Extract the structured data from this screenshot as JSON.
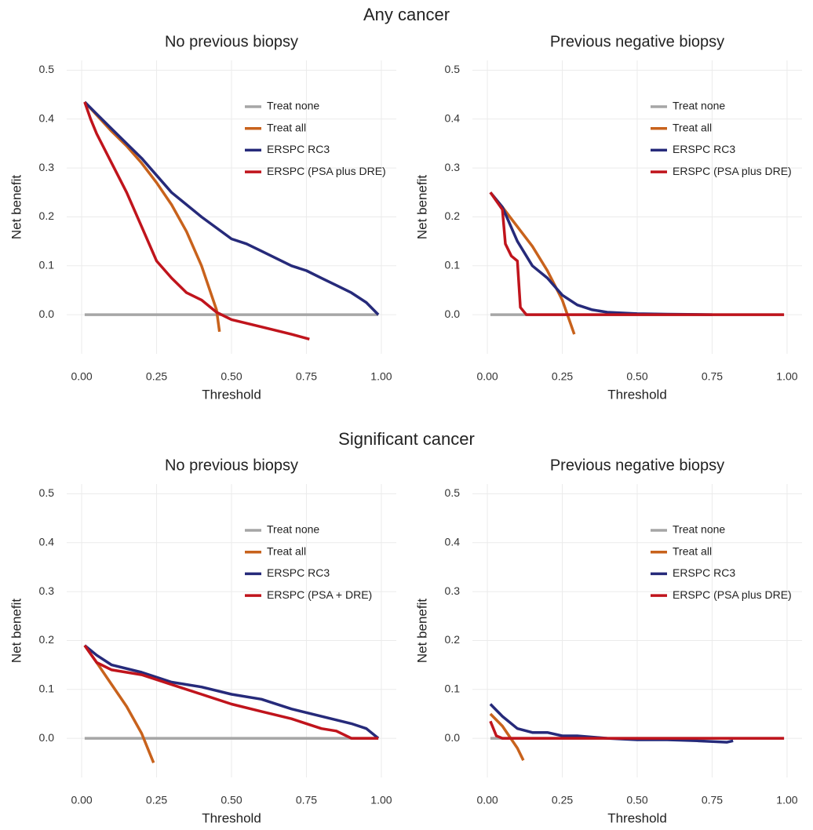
{
  "figure": {
    "section_titles": [
      "Any cancer",
      "Significant cancer"
    ]
  },
  "chart_data": [
    {
      "type": "line",
      "title": "No previous biopsy",
      "x_label": "Threshold",
      "y_label": "Net benefit",
      "xlim": [
        -0.05,
        1.05
      ],
      "ylim": [
        -0.08,
        0.52
      ],
      "xticks": [
        {
          "value": 0,
          "label": "0.00"
        },
        0.25,
        {
          "value": 0.5,
          "label": "0.50"
        },
        0.75,
        {
          "value": 1,
          "label": "1.00"
        }
      ],
      "yticks": [
        {
          "value": 0,
          "label": "0.0"
        },
        0.1,
        0.2,
        0.3,
        0.4,
        0.5
      ],
      "grid": true,
      "legend": "upper right",
      "series": [
        {
          "name": "Treat none",
          "color": "#a6a6a6",
          "x": [
            0.01,
            0.99
          ],
          "values": [
            0,
            0
          ]
        },
        {
          "name": "Treat all",
          "color": "#c8621c",
          "x": [
            0.01,
            0.1,
            0.15,
            0.2,
            0.25,
            0.3,
            0.35,
            0.4,
            0.45,
            0.46
          ],
          "values": [
            0.435,
            0.375,
            0.345,
            0.31,
            0.27,
            0.225,
            0.17,
            0.1,
            0.01,
            -0.035
          ]
        },
        {
          "name": "ERSPC RC3",
          "color": "#262a7a",
          "x": [
            0.01,
            0.1,
            0.2,
            0.3,
            0.4,
            0.5,
            0.55,
            0.6,
            0.65,
            0.7,
            0.75,
            0.8,
            0.85,
            0.9,
            0.95,
            0.99
          ],
          "values": [
            0.435,
            0.38,
            0.32,
            0.25,
            0.2,
            0.155,
            0.145,
            0.13,
            0.115,
            0.1,
            0.09,
            0.075,
            0.06,
            0.045,
            0.025,
            0
          ]
        },
        {
          "name": "ERSPC (PSA plus DRE)",
          "color": "#c0141c",
          "x": [
            0.01,
            0.03,
            0.05,
            0.1,
            0.15,
            0.2,
            0.25,
            0.3,
            0.35,
            0.4,
            0.45,
            0.5,
            0.6,
            0.7,
            0.76
          ],
          "values": [
            0.435,
            0.4,
            0.37,
            0.31,
            0.25,
            0.18,
            0.11,
            0.075,
            0.045,
            0.03,
            0.005,
            -0.01,
            -0.025,
            -0.04,
            -0.05
          ]
        }
      ]
    },
    {
      "type": "line",
      "title": "Previous negative biopsy",
      "x_label": "Threshold",
      "y_label": "Net benefit",
      "xlim": [
        -0.05,
        1.05
      ],
      "ylim": [
        -0.08,
        0.52
      ],
      "xticks": [
        {
          "value": 0,
          "label": "0.00"
        },
        0.25,
        {
          "value": 0.5,
          "label": "0.50"
        },
        0.75,
        {
          "value": 1,
          "label": "1.00"
        }
      ],
      "yticks": [
        {
          "value": 0,
          "label": "0.0"
        },
        0.1,
        0.2,
        0.3,
        0.4,
        0.5
      ],
      "grid": true,
      "legend": "upper right",
      "series": [
        {
          "name": "Treat none",
          "color": "#a6a6a6",
          "x": [
            0.01,
            0.99
          ],
          "values": [
            0,
            0
          ]
        },
        {
          "name": "Treat all",
          "color": "#c8621c",
          "x": [
            0.01,
            0.05,
            0.1,
            0.15,
            0.2,
            0.25,
            0.29
          ],
          "values": [
            0.25,
            0.22,
            0.18,
            0.14,
            0.09,
            0.03,
            -0.04
          ]
        },
        {
          "name": "ERSPC RC3",
          "color": "#262a7a",
          "x": [
            0.01,
            0.05,
            0.1,
            0.15,
            0.2,
            0.25,
            0.3,
            0.35,
            0.4,
            0.5,
            0.6,
            0.75
          ],
          "values": [
            0.25,
            0.22,
            0.15,
            0.1,
            0.075,
            0.04,
            0.02,
            0.01,
            0.005,
            0.002,
            0.001,
            0
          ]
        },
        {
          "name": "ERSPC (PSA plus DRE)",
          "color": "#c0141c",
          "x": [
            0.01,
            0.05,
            0.06,
            0.08,
            0.1,
            0.11,
            0.13,
            0.99
          ],
          "values": [
            0.25,
            0.215,
            0.145,
            0.12,
            0.11,
            0.015,
            0,
            0
          ]
        }
      ]
    },
    {
      "type": "line",
      "title": "No previous biopsy",
      "x_label": "Threshold",
      "y_label": "Net benefit",
      "xlim": [
        -0.05,
        1.05
      ],
      "ylim": [
        -0.08,
        0.52
      ],
      "xticks": [
        {
          "value": 0,
          "label": "0.00"
        },
        0.25,
        {
          "value": 0.5,
          "label": "0.50"
        },
        0.75,
        {
          "value": 1,
          "label": "1.00"
        }
      ],
      "yticks": [
        {
          "value": 0,
          "label": "0.0"
        },
        0.1,
        0.2,
        0.3,
        0.4,
        0.5
      ],
      "grid": true,
      "legend": "upper right",
      "series": [
        {
          "name": "Treat none",
          "color": "#a6a6a6",
          "x": [
            0.01,
            0.99
          ],
          "values": [
            0,
            0
          ]
        },
        {
          "name": "Treat all",
          "color": "#c8621c",
          "x": [
            0.01,
            0.05,
            0.1,
            0.15,
            0.2,
            0.24
          ],
          "values": [
            0.19,
            0.155,
            0.11,
            0.065,
            0.01,
            -0.05
          ]
        },
        {
          "name": "ERSPC RC3",
          "color": "#262a7a",
          "x": [
            0.01,
            0.05,
            0.1,
            0.2,
            0.3,
            0.4,
            0.5,
            0.6,
            0.7,
            0.8,
            0.9,
            0.95,
            0.99
          ],
          "values": [
            0.19,
            0.17,
            0.15,
            0.135,
            0.115,
            0.105,
            0.09,
            0.08,
            0.06,
            0.045,
            0.03,
            0.02,
            0
          ]
        },
        {
          "name": "ERSPC (PSA + DRE)",
          "color": "#c0141c",
          "x": [
            0.01,
            0.05,
            0.1,
            0.2,
            0.3,
            0.4,
            0.5,
            0.6,
            0.7,
            0.8,
            0.85,
            0.9,
            0.99
          ],
          "values": [
            0.19,
            0.155,
            0.14,
            0.13,
            0.11,
            0.09,
            0.07,
            0.055,
            0.04,
            0.02,
            0.015,
            0,
            0
          ]
        }
      ]
    },
    {
      "type": "line",
      "title": "Previous negative biopsy",
      "x_label": "Threshold",
      "y_label": "Net benefit",
      "xlim": [
        -0.05,
        1.05
      ],
      "ylim": [
        -0.08,
        0.52
      ],
      "xticks": [
        {
          "value": 0,
          "label": "0.00"
        },
        0.25,
        {
          "value": 0.5,
          "label": "0.50"
        },
        0.75,
        {
          "value": 1,
          "label": "1.00"
        }
      ],
      "yticks": [
        {
          "value": 0,
          "label": "0.0"
        },
        0.1,
        0.2,
        0.3,
        0.4,
        0.5
      ],
      "grid": true,
      "legend": "upper right",
      "series": [
        {
          "name": "Treat none",
          "color": "#a6a6a6",
          "x": [
            0.01,
            0.99
          ],
          "values": [
            0,
            0
          ]
        },
        {
          "name": "Treat all",
          "color": "#c8621c",
          "x": [
            0.01,
            0.05,
            0.1,
            0.12
          ],
          "values": [
            0.05,
            0.025,
            -0.02,
            -0.045
          ]
        },
        {
          "name": "ERSPC RC3",
          "color": "#262a7a",
          "x": [
            0.01,
            0.05,
            0.1,
            0.15,
            0.2,
            0.25,
            0.3,
            0.4,
            0.5,
            0.6,
            0.7,
            0.8,
            0.82
          ],
          "values": [
            0.07,
            0.045,
            0.02,
            0.012,
            0.012,
            0.005,
            0.005,
            0,
            -0.003,
            -0.003,
            -0.005,
            -0.008,
            -0.005
          ]
        },
        {
          "name": "ERSPC (PSA plus DRE)",
          "color": "#c0141c",
          "x": [
            0.01,
            0.03,
            0.05,
            0.99
          ],
          "values": [
            0.035,
            0.005,
            0,
            0
          ]
        }
      ]
    }
  ]
}
